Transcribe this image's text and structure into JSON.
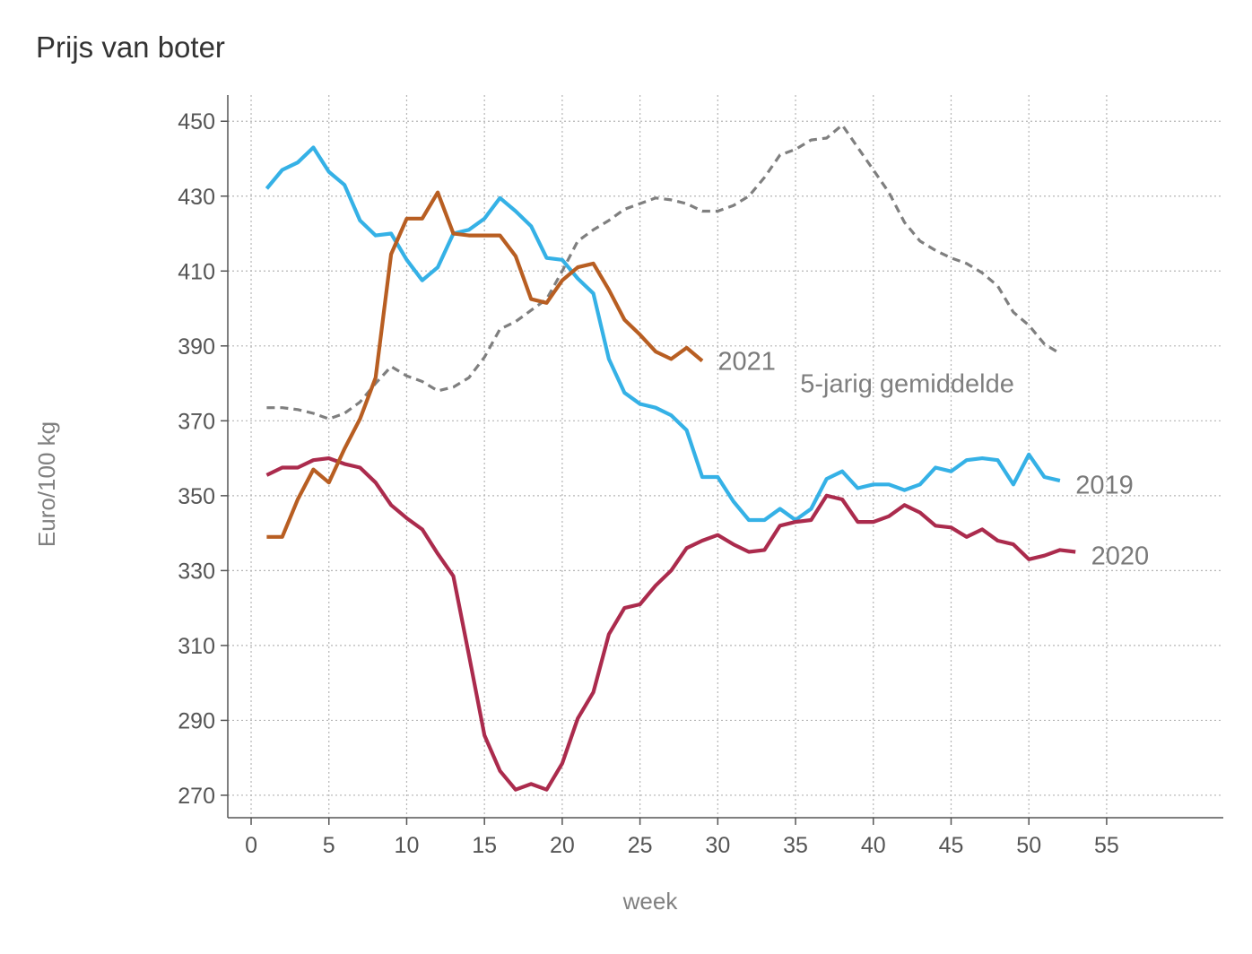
{
  "chart_data": {
    "type": "line",
    "title": "Prijs van boter",
    "xlabel": "week",
    "ylabel": "Euro/100 kg",
    "xlim": [
      -1.5,
      62.5
    ],
    "ylim": [
      264,
      457
    ],
    "xticks": [
      0,
      5,
      10,
      15,
      20,
      25,
      30,
      35,
      40,
      45,
      50,
      55
    ],
    "yticks": [
      270,
      290,
      310,
      330,
      350,
      370,
      390,
      410,
      430,
      450
    ],
    "grid": true,
    "legend": "none",
    "series": [
      {
        "name": "5-jarig gemiddelde",
        "color": "#7f7f7f",
        "dashed": true,
        "label_week": 35.3,
        "label_value": 380,
        "x": [
          1,
          2,
          3,
          4,
          5,
          6,
          7,
          8,
          9,
          10,
          11,
          12,
          13,
          14,
          15,
          16,
          17,
          18,
          19,
          20,
          21,
          22,
          23,
          24,
          25,
          26,
          27,
          28,
          29,
          30,
          31,
          32,
          33,
          34,
          35,
          36,
          37,
          38,
          39,
          40,
          41,
          42,
          43,
          44,
          45,
          46,
          47,
          48,
          49,
          50,
          51,
          52
        ],
        "y": [
          373.5,
          373.5,
          373,
          372,
          370.5,
          372,
          375,
          380,
          384.5,
          382,
          380.5,
          378,
          379,
          381.5,
          387,
          394.5,
          396.5,
          399.5,
          402.5,
          410,
          418,
          421,
          423.5,
          426.5,
          428,
          429.5,
          429,
          428,
          426,
          426,
          427.5,
          430,
          435,
          441,
          442.5,
          445,
          445.5,
          449,
          443,
          437,
          431,
          423,
          418,
          415.5,
          413.5,
          412,
          409.5,
          406,
          399,
          395.5,
          390.5,
          388
        ]
      },
      {
        "name": "2019",
        "color": "#35b1e6",
        "dashed": false,
        "label_week": 53,
        "label_value": 353,
        "x": [
          1,
          2,
          3,
          4,
          5,
          6,
          7,
          8,
          9,
          10,
          11,
          12,
          13,
          14,
          15,
          16,
          17,
          18,
          19,
          20,
          21,
          22,
          23,
          24,
          25,
          26,
          27,
          28,
          29,
          30,
          31,
          32,
          33,
          34,
          35,
          36,
          37,
          38,
          39,
          40,
          41,
          42,
          43,
          44,
          45,
          46,
          47,
          48,
          49,
          50,
          51,
          52
        ],
        "y": [
          432,
          437,
          439,
          443,
          436.5,
          433,
          423.5,
          419.5,
          420,
          413,
          407.5,
          411,
          420,
          421,
          424,
          429.5,
          426,
          422,
          413.5,
          413,
          408,
          404,
          386.5,
          377.5,
          374.5,
          373.5,
          371.5,
          367.5,
          355,
          355,
          348.5,
          343.5,
          343.5,
          346.5,
          343.5,
          346.5,
          354.5,
          356.5,
          352,
          353,
          353,
          351.5,
          353,
          357.5,
          356.5,
          359.5,
          360,
          359.5,
          353,
          361,
          355,
          354
        ]
      },
      {
        "name": "2020",
        "color": "#ab2b4d",
        "dashed": false,
        "label_week": 54,
        "label_value": 334,
        "x": [
          1,
          2,
          3,
          4,
          5,
          6,
          7,
          8,
          9,
          10,
          11,
          12,
          13,
          14,
          15,
          16,
          17,
          18,
          19,
          20,
          21,
          22,
          23,
          24,
          25,
          26,
          27,
          28,
          29,
          30,
          31,
          32,
          33,
          34,
          35,
          36,
          37,
          38,
          39,
          40,
          41,
          42,
          43,
          44,
          45,
          46,
          47,
          48,
          49,
          50,
          51,
          52,
          53
        ],
        "y": [
          355.5,
          357.5,
          357.5,
          359.5,
          360,
          358.5,
          357.5,
          353.5,
          347.5,
          344,
          341,
          334.5,
          328.5,
          307.5,
          286,
          276.5,
          271.5,
          273,
          271.5,
          278.5,
          290.5,
          297.5,
          313,
          320,
          321,
          326,
          330,
          336,
          338,
          339.5,
          337,
          335,
          335.5,
          342,
          343,
          343.5,
          350,
          349,
          343,
          343,
          344.5,
          347.5,
          345.5,
          342,
          341.5,
          339,
          341,
          338,
          337,
          333,
          334,
          335.5,
          335
        ]
      },
      {
        "name": "2021",
        "color": "#b85e22",
        "dashed": false,
        "label_week": 30,
        "label_value": 386,
        "x": [
          1,
          2,
          3,
          4,
          5,
          6,
          7,
          8,
          9,
          10,
          11,
          12,
          13,
          14,
          15,
          16,
          17,
          18,
          19,
          20,
          21,
          22,
          23,
          24,
          25,
          26,
          27,
          28,
          29
        ],
        "y": [
          339,
          339,
          349,
          357,
          353.5,
          362.5,
          370.5,
          381.5,
          414.5,
          424,
          424,
          431,
          420,
          419.5,
          419.5,
          419.5,
          414,
          402.5,
          401.5,
          407.5,
          411,
          412,
          405,
          397,
          393,
          388.5,
          386.5,
          389.5,
          386
        ]
      }
    ]
  }
}
